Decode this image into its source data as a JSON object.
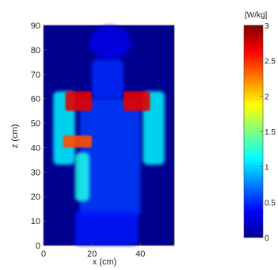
{
  "chart_data": {
    "type": "heatmap",
    "xlabel": "x (cm)",
    "ylabel": "z (cm)",
    "xlim": [
      0,
      54
    ],
    "ylim": [
      0,
      90
    ],
    "xticks": [
      0,
      20,
      40
    ],
    "yticks": [
      0,
      10,
      20,
      30,
      40,
      50,
      60,
      70,
      80,
      90
    ],
    "colorbar": {
      "unit": "[W/kg]",
      "range": [
        0,
        3
      ],
      "ticks": [
        "0",
        "0.5",
        "1",
        "1.5",
        "2",
        "2.5",
        "3"
      ],
      "tick_values": [
        0,
        0.5,
        1,
        1.5,
        2,
        2.5,
        3
      ],
      "colormap": "jet"
    },
    "regions": [
      {
        "part": "head",
        "x": [
          19,
          36
        ],
        "z": [
          76,
          90
        ],
        "value": 0.3
      },
      {
        "part": "neck",
        "x": [
          20,
          33
        ],
        "z": [
          60,
          76
        ],
        "value": 0.5
      },
      {
        "part": "torso",
        "x": [
          15,
          40
        ],
        "z": [
          12,
          60
        ],
        "value": 0.55
      },
      {
        "part": "pelvis",
        "x": [
          13,
          39
        ],
        "z": [
          0,
          14
        ],
        "value": 0.45
      },
      {
        "part": "left-arm",
        "x": [
          4,
          13
        ],
        "z": [
          33,
          63
        ],
        "value": 1.1
      },
      {
        "part": "right-arm",
        "x": [
          41,
          50
        ],
        "z": [
          33,
          63
        ],
        "value": 1.1
      },
      {
        "part": "left-shoulder",
        "x": [
          9,
          20
        ],
        "z": [
          55,
          63
        ],
        "value": 2.7
      },
      {
        "part": "right-shoulder",
        "x": [
          33,
          44
        ],
        "z": [
          55,
          63
        ],
        "value": 2.7
      },
      {
        "part": "left-chest",
        "x": [
          8,
          20
        ],
        "z": [
          40,
          45
        ],
        "value": 2.4
      },
      {
        "part": "left-flank",
        "x": [
          13,
          19
        ],
        "z": [
          18,
          38
        ],
        "value": 1.2
      }
    ]
  }
}
